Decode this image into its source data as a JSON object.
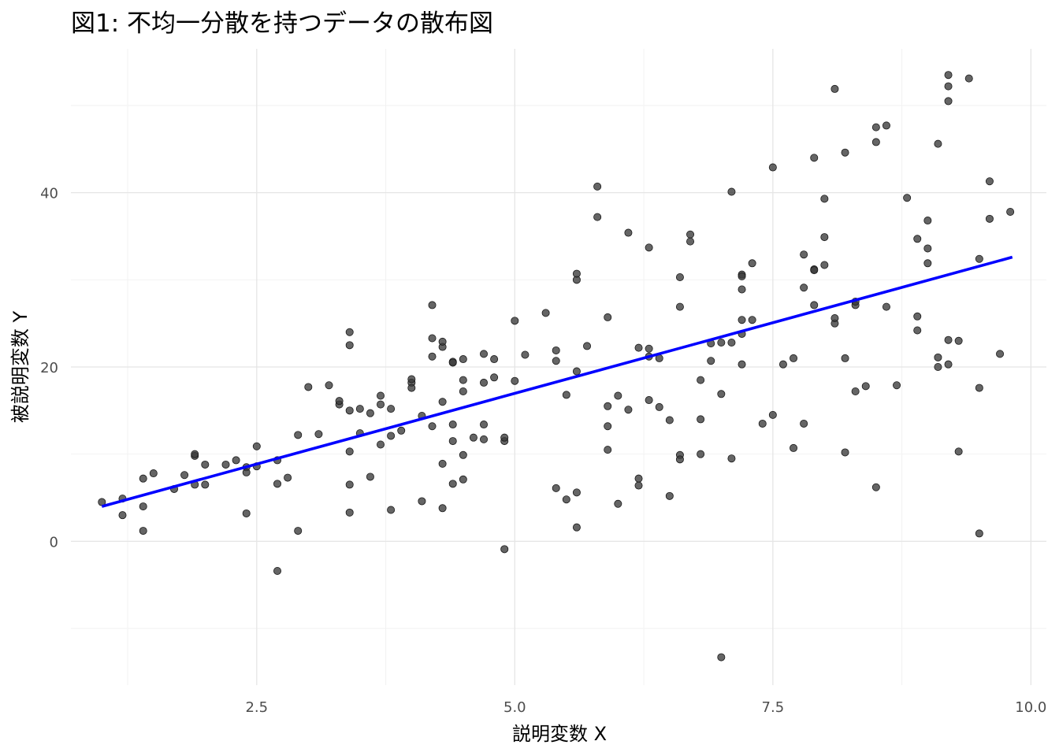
{
  "chart_data": {
    "type": "scatter",
    "title": "図1: 不均一分散を持つデータの散布図",
    "xlabel": "説明変数 X",
    "ylabel": "被説明変数 Y",
    "xlim": [
      0.7,
      10.15
    ],
    "ylim": [
      -16.5,
      56.5
    ],
    "x_ticks": [
      2.5,
      5.0,
      7.5,
      10.0
    ],
    "x_tick_labels": [
      "2.5",
      "5.0",
      "7.5",
      "10.0"
    ],
    "y_ticks": [
      0,
      20,
      40
    ],
    "y_tick_labels": [
      "0",
      "20",
      "40"
    ],
    "grid": true,
    "legend": "none",
    "series": [
      {
        "color": "#3a3a3a",
        "points": [
          [
            1.0,
            4.5
          ],
          [
            1.2,
            4.9
          ],
          [
            1.2,
            3.0
          ],
          [
            1.4,
            7.2
          ],
          [
            1.4,
            4.0
          ],
          [
            1.4,
            1.2
          ],
          [
            1.5,
            7.8
          ],
          [
            1.7,
            6.0
          ],
          [
            1.8,
            7.6
          ],
          [
            1.9,
            9.8
          ],
          [
            1.9,
            10.0
          ],
          [
            1.9,
            6.5
          ],
          [
            2.0,
            8.8
          ],
          [
            2.0,
            6.5
          ],
          [
            2.2,
            8.8
          ],
          [
            2.3,
            9.3
          ],
          [
            2.4,
            8.5
          ],
          [
            2.4,
            7.9
          ],
          [
            2.4,
            3.2
          ],
          [
            2.5,
            10.9
          ],
          [
            2.5,
            8.6
          ],
          [
            2.7,
            9.3
          ],
          [
            2.7,
            6.6
          ],
          [
            2.7,
            -3.4
          ],
          [
            2.8,
            7.3
          ],
          [
            2.9,
            12.2
          ],
          [
            2.9,
            1.2
          ],
          [
            3.0,
            17.7
          ],
          [
            3.1,
            12.3
          ],
          [
            3.2,
            17.9
          ],
          [
            3.3,
            15.7
          ],
          [
            3.3,
            16.1
          ],
          [
            3.4,
            22.5
          ],
          [
            3.4,
            15.0
          ],
          [
            3.4,
            10.3
          ],
          [
            3.4,
            24.0
          ],
          [
            3.4,
            6.5
          ],
          [
            3.4,
            3.3
          ],
          [
            3.5,
            15.2
          ],
          [
            3.5,
            12.4
          ],
          [
            3.6,
            14.7
          ],
          [
            3.6,
            7.4
          ],
          [
            3.7,
            15.7
          ],
          [
            3.7,
            16.7
          ],
          [
            3.7,
            11.1
          ],
          [
            3.8,
            12.1
          ],
          [
            3.8,
            3.6
          ],
          [
            3.8,
            15.2
          ],
          [
            3.9,
            12.7
          ],
          [
            4.0,
            18.2
          ],
          [
            4.0,
            17.6
          ],
          [
            4.0,
            18.6
          ],
          [
            4.1,
            14.4
          ],
          [
            4.1,
            4.6
          ],
          [
            4.2,
            23.3
          ],
          [
            4.2,
            21.2
          ],
          [
            4.2,
            13.2
          ],
          [
            4.2,
            27.1
          ],
          [
            4.3,
            16.0
          ],
          [
            4.3,
            8.9
          ],
          [
            4.3,
            22.3
          ],
          [
            4.3,
            3.8
          ],
          [
            4.3,
            22.9
          ],
          [
            4.4,
            20.6
          ],
          [
            4.4,
            20.5
          ],
          [
            4.4,
            6.6
          ],
          [
            4.4,
            11.5
          ],
          [
            4.4,
            13.4
          ],
          [
            4.5,
            20.9
          ],
          [
            4.5,
            18.5
          ],
          [
            4.5,
            9.9
          ],
          [
            4.5,
            17.2
          ],
          [
            4.5,
            7.1
          ],
          [
            4.6,
            11.9
          ],
          [
            4.7,
            11.7
          ],
          [
            4.7,
            21.5
          ],
          [
            4.7,
            13.4
          ],
          [
            4.7,
            18.2
          ],
          [
            4.8,
            20.9
          ],
          [
            4.8,
            18.8
          ],
          [
            4.9,
            11.5
          ],
          [
            4.9,
            11.9
          ],
          [
            4.9,
            -0.9
          ],
          [
            5.0,
            25.3
          ],
          [
            5.0,
            18.4
          ],
          [
            5.1,
            21.4
          ],
          [
            5.3,
            26.2
          ],
          [
            5.4,
            21.9
          ],
          [
            5.4,
            6.1
          ],
          [
            5.4,
            20.7
          ],
          [
            5.5,
            16.8
          ],
          [
            5.5,
            4.8
          ],
          [
            5.6,
            1.6
          ],
          [
            5.6,
            19.5
          ],
          [
            5.6,
            30.0
          ],
          [
            5.6,
            30.7
          ],
          [
            5.6,
            5.6
          ],
          [
            5.7,
            22.4
          ],
          [
            5.8,
            40.7
          ],
          [
            5.8,
            37.2
          ],
          [
            5.9,
            13.2
          ],
          [
            5.9,
            10.5
          ],
          [
            5.9,
            25.7
          ],
          [
            5.9,
            15.5
          ],
          [
            6.0,
            16.7
          ],
          [
            6.0,
            4.3
          ],
          [
            6.1,
            15.1
          ],
          [
            6.1,
            35.4
          ],
          [
            6.2,
            22.2
          ],
          [
            6.2,
            6.4
          ],
          [
            6.2,
            7.2
          ],
          [
            6.3,
            33.7
          ],
          [
            6.3,
            16.2
          ],
          [
            6.3,
            22.1
          ],
          [
            6.3,
            21.2
          ],
          [
            6.4,
            15.4
          ],
          [
            6.4,
            21.0
          ],
          [
            6.5,
            5.2
          ],
          [
            6.5,
            13.9
          ],
          [
            6.6,
            9.9
          ],
          [
            6.6,
            30.3
          ],
          [
            6.6,
            26.9
          ],
          [
            6.6,
            9.4
          ],
          [
            6.7,
            35.2
          ],
          [
            6.7,
            34.4
          ],
          [
            6.8,
            18.5
          ],
          [
            6.8,
            14.0
          ],
          [
            6.8,
            10.0
          ],
          [
            6.9,
            20.7
          ],
          [
            6.9,
            22.7
          ],
          [
            7.0,
            22.8
          ],
          [
            7.0,
            16.9
          ],
          [
            7.0,
            -13.3
          ],
          [
            7.1,
            9.5
          ],
          [
            7.1,
            40.1
          ],
          [
            7.1,
            22.8
          ],
          [
            7.2,
            30.6
          ],
          [
            7.2,
            20.3
          ],
          [
            7.2,
            30.4
          ],
          [
            7.2,
            25.4
          ],
          [
            7.2,
            28.9
          ],
          [
            7.2,
            23.8
          ],
          [
            7.3,
            25.4
          ],
          [
            7.3,
            31.9
          ],
          [
            7.4,
            13.5
          ],
          [
            7.5,
            42.9
          ],
          [
            7.5,
            14.5
          ],
          [
            7.6,
            20.3
          ],
          [
            7.7,
            10.7
          ],
          [
            7.7,
            21.0
          ],
          [
            7.8,
            29.1
          ],
          [
            7.8,
            32.9
          ],
          [
            7.8,
            13.5
          ],
          [
            7.9,
            27.1
          ],
          [
            7.9,
            31.2
          ],
          [
            7.9,
            44.0
          ],
          [
            7.9,
            31.1
          ],
          [
            8.0,
            34.9
          ],
          [
            8.0,
            39.3
          ],
          [
            8.0,
            31.7
          ],
          [
            8.1,
            25.0
          ],
          [
            8.1,
            51.9
          ],
          [
            8.1,
            25.6
          ],
          [
            8.2,
            44.6
          ],
          [
            8.2,
            10.2
          ],
          [
            8.2,
            21.0
          ],
          [
            8.3,
            27.1
          ],
          [
            8.3,
            27.5
          ],
          [
            8.3,
            17.2
          ],
          [
            8.4,
            17.8
          ],
          [
            8.5,
            47.5
          ],
          [
            8.5,
            6.2
          ],
          [
            8.5,
            45.8
          ],
          [
            8.6,
            26.9
          ],
          [
            8.6,
            47.7
          ],
          [
            8.7,
            17.9
          ],
          [
            8.8,
            39.4
          ],
          [
            8.9,
            25.8
          ],
          [
            8.9,
            24.2
          ],
          [
            8.9,
            34.7
          ],
          [
            9.0,
            33.6
          ],
          [
            9.0,
            31.9
          ],
          [
            9.0,
            36.8
          ],
          [
            9.1,
            20.0
          ],
          [
            9.1,
            21.1
          ],
          [
            9.1,
            45.6
          ],
          [
            9.2,
            20.3
          ],
          [
            9.2,
            23.1
          ],
          [
            9.2,
            53.5
          ],
          [
            9.2,
            50.5
          ],
          [
            9.2,
            52.2
          ],
          [
            9.3,
            23.0
          ],
          [
            9.3,
            10.3
          ],
          [
            9.4,
            53.1
          ],
          [
            9.5,
            17.6
          ],
          [
            9.5,
            0.9
          ],
          [
            9.5,
            32.4
          ],
          [
            9.6,
            41.3
          ],
          [
            9.6,
            37.0
          ],
          [
            9.7,
            21.5
          ],
          [
            9.8,
            37.8
          ]
        ]
      }
    ],
    "fit_line": {
      "color": "#0000ff",
      "x": [
        1.0,
        9.82
      ],
      "y": [
        4.0,
        32.6
      ]
    }
  }
}
